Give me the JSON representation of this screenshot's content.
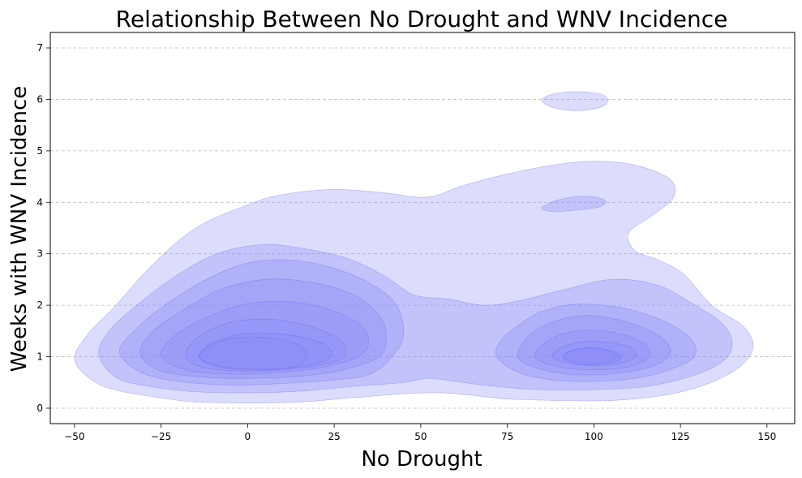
{
  "chart_data": {
    "type": "kde-contour",
    "title": "Relationship Between No Drought and WNV Incidence",
    "xlabel": "No Drought",
    "ylabel": "Weeks with WNV Incidence",
    "xlim": [
      -57,
      158
    ],
    "ylim": [
      -0.3,
      7.3
    ],
    "xticks": [
      -50,
      -25,
      0,
      25,
      50,
      75,
      100,
      125,
      150
    ],
    "yticks": [
      0,
      1,
      2,
      3,
      4,
      5,
      6,
      7
    ],
    "grid": {
      "y": true,
      "x": false,
      "style": "dashed"
    },
    "fill_color": "#8c8cf7",
    "line_color": "#5a5af0",
    "levels": [
      {
        "name": "level-1",
        "fill_opacity": 0.3,
        "polygons": [
          [
            [
              -50,
              0.95
            ],
            [
              -45,
              0.55
            ],
            [
              -38,
              0.35
            ],
            [
              -25,
              0.2
            ],
            [
              -15,
              0.12
            ],
            [
              0,
              0.1
            ],
            [
              15,
              0.12
            ],
            [
              30,
              0.2
            ],
            [
              45,
              0.28
            ],
            [
              55,
              0.3
            ],
            [
              65,
              0.25
            ],
            [
              75,
              0.18
            ],
            [
              90,
              0.15
            ],
            [
              105,
              0.15
            ],
            [
              120,
              0.25
            ],
            [
              132,
              0.45
            ],
            [
              142,
              0.8
            ],
            [
              146,
              1.2
            ],
            [
              143,
              1.6
            ],
            [
              134,
              2.0
            ],
            [
              126,
              2.6
            ],
            [
              118,
              2.9
            ],
            [
              112,
              3.05
            ],
            [
              110,
              3.4
            ],
            [
              117,
              3.75
            ],
            [
              123,
              4.1
            ],
            [
              122,
              4.45
            ],
            [
              112,
              4.72
            ],
            [
              100,
              4.8
            ],
            [
              88,
              4.72
            ],
            [
              75,
              4.55
            ],
            [
              62,
              4.32
            ],
            [
              52,
              4.1
            ],
            [
              40,
              4.18
            ],
            [
              25,
              4.25
            ],
            [
              10,
              4.15
            ],
            [
              0,
              3.95
            ],
            [
              -15,
              3.5
            ],
            [
              -28,
              2.75
            ],
            [
              -38,
              2.0
            ],
            [
              -46,
              1.45
            ]
          ],
          [
            [
              85,
              5.98
            ],
            [
              88,
              6.1
            ],
            [
              95,
              6.15
            ],
            [
              102,
              6.1
            ],
            [
              104,
              5.98
            ],
            [
              102,
              5.85
            ],
            [
              95,
              5.78
            ],
            [
              88,
              5.85
            ]
          ]
        ]
      },
      {
        "name": "level-2",
        "fill_opacity": 0.3,
        "polygons": [
          [
            [
              -43,
              1.05
            ],
            [
              -38,
              0.6
            ],
            [
              -28,
              0.42
            ],
            [
              -15,
              0.32
            ],
            [
              0,
              0.3
            ],
            [
              15,
              0.33
            ],
            [
              30,
              0.42
            ],
            [
              45,
              0.5
            ],
            [
              52,
              0.58
            ],
            [
              60,
              0.52
            ],
            [
              72,
              0.42
            ],
            [
              85,
              0.36
            ],
            [
              100,
              0.36
            ],
            [
              115,
              0.42
            ],
            [
              128,
              0.62
            ],
            [
              137,
              0.9
            ],
            [
              140,
              1.25
            ],
            [
              137,
              1.65
            ],
            [
              128,
              2.05
            ],
            [
              118,
              2.4
            ],
            [
              105,
              2.5
            ],
            [
              90,
              2.28
            ],
            [
              78,
              2.08
            ],
            [
              68,
              2.0
            ],
            [
              58,
              2.12
            ],
            [
              48,
              2.2
            ],
            [
              40,
              2.55
            ],
            [
              30,
              2.88
            ],
            [
              18,
              3.08
            ],
            [
              5,
              3.18
            ],
            [
              -8,
              3.02
            ],
            [
              -20,
              2.6
            ],
            [
              -32,
              2.0
            ],
            [
              -40,
              1.5
            ]
          ],
          [
            [
              85,
              3.9
            ],
            [
              90,
              4.05
            ],
            [
              97,
              4.12
            ],
            [
              103,
              4.05
            ],
            [
              102,
              3.92
            ],
            [
              95,
              3.85
            ],
            [
              88,
              3.82
            ]
          ]
        ]
      },
      {
        "name": "level-3",
        "fill_opacity": 0.32,
        "polygons": [
          [
            [
              -37,
              1.1
            ],
            [
              -31,
              0.7
            ],
            [
              -20,
              0.52
            ],
            [
              -5,
              0.45
            ],
            [
              10,
              0.48
            ],
            [
              25,
              0.55
            ],
            [
              35,
              0.65
            ],
            [
              41,
              0.95
            ],
            [
              45,
              1.4
            ],
            [
              43,
              2.0
            ],
            [
              36,
              2.4
            ],
            [
              25,
              2.72
            ],
            [
              12,
              2.88
            ],
            [
              0,
              2.82
            ],
            [
              -12,
              2.5
            ],
            [
              -24,
              2.0
            ],
            [
              -32,
              1.55
            ]
          ],
          [
            [
              72,
              1.0
            ],
            [
              78,
              0.7
            ],
            [
              88,
              0.55
            ],
            [
              100,
              0.52
            ],
            [
              112,
              0.58
            ],
            [
              122,
              0.75
            ],
            [
              129,
              1.0
            ],
            [
              128,
              1.35
            ],
            [
              120,
              1.7
            ],
            [
              108,
              1.95
            ],
            [
              95,
              2.02
            ],
            [
              85,
              1.88
            ],
            [
              78,
              1.6
            ],
            [
              73,
              1.3
            ]
          ]
        ]
      },
      {
        "name": "level-4",
        "fill_opacity": 0.32,
        "polygons": [
          [
            [
              -31,
              1.05
            ],
            [
              -25,
              0.72
            ],
            [
              -12,
              0.6
            ],
            [
              0,
              0.58
            ],
            [
              15,
              0.62
            ],
            [
              28,
              0.75
            ],
            [
              38,
              1.0
            ],
            [
              40,
              1.4
            ],
            [
              38,
              1.8
            ],
            [
              30,
              2.22
            ],
            [
              18,
              2.45
            ],
            [
              5,
              2.5
            ],
            [
              -8,
              2.3
            ],
            [
              -20,
              1.85
            ],
            [
              -28,
              1.45
            ]
          ],
          [
            [
              78,
              1.0
            ],
            [
              85,
              0.75
            ],
            [
              95,
              0.65
            ],
            [
              107,
              0.68
            ],
            [
              117,
              0.82
            ],
            [
              122,
              1.05
            ],
            [
              120,
              1.35
            ],
            [
              112,
              1.62
            ],
            [
              100,
              1.8
            ],
            [
              90,
              1.72
            ],
            [
              82,
              1.45
            ]
          ]
        ]
      },
      {
        "name": "level-5",
        "fill_opacity": 0.32,
        "polygons": [
          [
            [
              -25,
              1.0
            ],
            [
              -18,
              0.75
            ],
            [
              -5,
              0.66
            ],
            [
              10,
              0.7
            ],
            [
              22,
              0.8
            ],
            [
              32,
              1.0
            ],
            [
              35,
              1.3
            ],
            [
              32,
              1.65
            ],
            [
              22,
              1.95
            ],
            [
              10,
              2.08
            ],
            [
              -2,
              2.0
            ],
            [
              -14,
              1.7
            ],
            [
              -22,
              1.35
            ]
          ],
          [
            [
              83,
              1.0
            ],
            [
              90,
              0.8
            ],
            [
              100,
              0.75
            ],
            [
              110,
              0.8
            ],
            [
              116,
              1.0
            ],
            [
              114,
              1.28
            ],
            [
              105,
              1.48
            ],
            [
              95,
              1.5
            ],
            [
              87,
              1.32
            ]
          ]
        ]
      },
      {
        "name": "level-6",
        "fill_opacity": 0.35,
        "polygons": [
          [
            [
              -18,
              1.0
            ],
            [
              -12,
              0.78
            ],
            [
              0,
              0.72
            ],
            [
              12,
              0.76
            ],
            [
              22,
              0.85
            ],
            [
              28,
              1.0
            ],
            [
              27,
              1.3
            ],
            [
              20,
              1.55
            ],
            [
              8,
              1.72
            ],
            [
              -4,
              1.68
            ],
            [
              -14,
              1.4
            ]
          ],
          [
            [
              88,
              1.0
            ],
            [
              95,
              0.85
            ],
            [
              105,
              0.84
            ],
            [
              112,
              1.0
            ],
            [
              110,
              1.2
            ],
            [
              100,
              1.3
            ],
            [
              92,
              1.22
            ]
          ]
        ]
      },
      {
        "name": "level-7",
        "fill_opacity": 0.38,
        "polygons": [
          [
            [
              -14,
              1.0
            ],
            [
              -8,
              0.8
            ],
            [
              5,
              0.76
            ],
            [
              17,
              0.82
            ],
            [
              24,
              1.0
            ],
            [
              22,
              1.25
            ],
            [
              12,
              1.42
            ],
            [
              0,
              1.45
            ],
            [
              -10,
              1.28
            ]
          ],
          [
            [
              91,
              1.0
            ],
            [
              97,
              0.88
            ],
            [
              104,
              0.9
            ],
            [
              107,
              1.02
            ],
            [
              103,
              1.14
            ],
            [
              96,
              1.15
            ]
          ]
        ]
      },
      {
        "name": "level-8",
        "fill_opacity": 0.42,
        "polygons": [
          [
            [
              -14,
              1.0
            ],
            [
              -7,
              0.8
            ],
            [
              5,
              0.74
            ],
            [
              14,
              0.82
            ],
            [
              17,
              1.05
            ],
            [
              13,
              1.28
            ],
            [
              3,
              1.38
            ],
            [
              -8,
              1.3
            ]
          ],
          [
            [
              91,
              1.0
            ],
            [
              96,
              0.85
            ],
            [
              105,
              0.88
            ],
            [
              108,
              1.02
            ],
            [
              102,
              1.16
            ],
            [
              95,
              1.15
            ]
          ]
        ]
      }
    ]
  }
}
